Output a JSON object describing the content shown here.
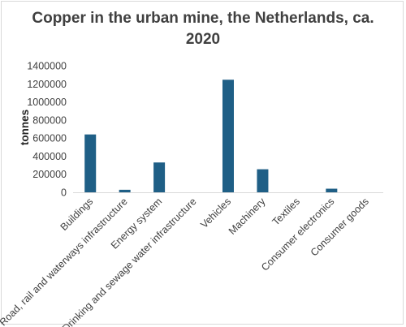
{
  "chart_data": {
    "type": "bar",
    "title_line1": "Copper in the urban mine, the Netherlands, ca.",
    "title_line2": "2020",
    "xlabel": "",
    "ylabel": "tonnes",
    "ylim": [
      0,
      1400000
    ],
    "yticks": [
      0,
      200000,
      400000,
      600000,
      800000,
      1000000,
      1200000,
      1400000
    ],
    "grid": false,
    "legend": "none",
    "bar_color": "#1f5f86",
    "categories": [
      "Buildings",
      "Road, rail and waterways infrastructure",
      "Energy system",
      "Drinking and sewage water infrastructure",
      "Vehicles",
      "Machinery",
      "Textiles",
      "Consumer electronics",
      "Consumer goods"
    ],
    "values": [
      640000,
      28000,
      330000,
      0,
      1245000,
      255000,
      0,
      40000,
      0
    ]
  }
}
